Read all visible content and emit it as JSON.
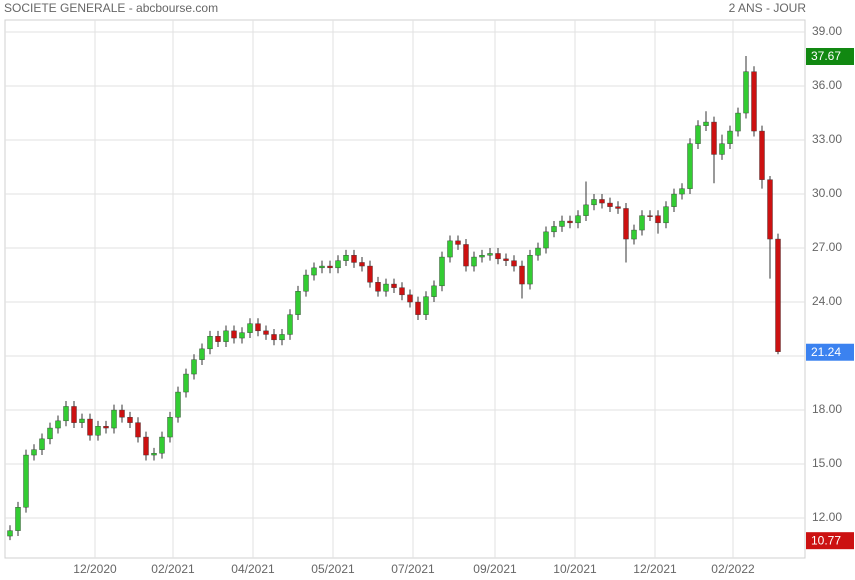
{
  "chart_data": {
    "type": "candlestick",
    "title": "SOCIETE GENERALE - abcbourse.com",
    "subtitle": "2 ANS - JOUR",
    "open": [
      11.0,
      11.3,
      12.6,
      15.5,
      15.8,
      16.4,
      17.0,
      17.4,
      18.2,
      17.3,
      17.5,
      16.6,
      17.1,
      17.0,
      18.0,
      17.6,
      17.3,
      16.5,
      15.5,
      15.6,
      16.5,
      17.6,
      19.0,
      20.0,
      20.8,
      21.4,
      22.1,
      21.8,
      22.4,
      22.0,
      22.3,
      22.8,
      22.4,
      22.2,
      21.9,
      22.2,
      23.3,
      24.6,
      25.5,
      25.9,
      26.0,
      25.9,
      26.3,
      26.6,
      26.2,
      26.0,
      25.1,
      24.6,
      25.0,
      24.8,
      24.4,
      24.0,
      23.3,
      24.3,
      24.9,
      26.5,
      27.4,
      27.2,
      26.0,
      26.5,
      26.6,
      26.7,
      26.4,
      26.3,
      26.0,
      25.0,
      26.6,
      27.0,
      27.9,
      28.2,
      28.5,
      28.4,
      28.8,
      29.4,
      29.7,
      29.5,
      29.3,
      29.2,
      27.5,
      28.0,
      28.8,
      28.8,
      28.4,
      29.3,
      30.0,
      30.3,
      32.8,
      33.8,
      34.0,
      32.2,
      32.8,
      33.5,
      34.5,
      36.8,
      33.5,
      30.8,
      27.5
    ],
    "high": [
      11.6,
      12.9,
      15.8,
      16.1,
      16.7,
      17.3,
      17.7,
      18.5,
      18.5,
      17.8,
      17.8,
      17.4,
      17.4,
      18.3,
      18.3,
      17.9,
      17.6,
      16.8,
      15.9,
      16.8,
      17.9,
      19.3,
      20.3,
      21.1,
      21.7,
      22.4,
      22.4,
      22.7,
      22.7,
      22.6,
      23.1,
      23.1,
      22.7,
      22.5,
      22.5,
      23.6,
      24.9,
      25.8,
      26.2,
      26.3,
      26.3,
      26.6,
      26.9,
      26.9,
      26.5,
      26.3,
      25.4,
      25.3,
      25.3,
      25.1,
      24.7,
      24.3,
      24.6,
      25.2,
      26.8,
      27.7,
      27.7,
      27.5,
      26.8,
      26.9,
      27.0,
      27.0,
      26.7,
      26.6,
      26.3,
      26.9,
      27.3,
      28.2,
      28.5,
      28.8,
      28.8,
      29.1,
      30.7,
      30.0,
      30.0,
      29.8,
      29.6,
      29.5,
      28.3,
      29.1,
      29.1,
      29.1,
      29.6,
      30.3,
      30.6,
      33.1,
      34.1,
      34.6,
      34.3,
      33.3,
      33.8,
      34.8,
      37.67,
      37.1,
      33.8,
      31.0,
      27.8
    ],
    "low": [
      10.77,
      11.0,
      12.3,
      15.2,
      15.5,
      16.1,
      16.7,
      17.1,
      17.0,
      17.0,
      16.3,
      16.3,
      16.7,
      16.7,
      17.3,
      17.0,
      16.2,
      15.2,
      15.2,
      15.3,
      16.2,
      17.3,
      18.7,
      19.7,
      20.5,
      21.1,
      21.5,
      21.5,
      21.7,
      21.7,
      22.0,
      22.1,
      21.9,
      21.6,
      21.6,
      21.9,
      23.0,
      24.3,
      25.2,
      25.6,
      25.6,
      25.6,
      26.0,
      25.9,
      25.7,
      24.8,
      24.3,
      24.3,
      24.5,
      24.1,
      23.7,
      23.0,
      23.0,
      24.0,
      24.6,
      26.2,
      26.9,
      25.7,
      25.7,
      26.2,
      26.3,
      26.1,
      26.0,
      25.7,
      24.2,
      24.7,
      26.3,
      26.7,
      27.6,
      27.9,
      28.1,
      28.1,
      28.5,
      29.1,
      29.2,
      29.0,
      28.9,
      26.2,
      27.2,
      27.7,
      28.5,
      27.8,
      28.1,
      29.0,
      29.7,
      30.0,
      32.5,
      33.5,
      30.6,
      31.9,
      32.5,
      33.2,
      34.2,
      33.2,
      30.3,
      25.3,
      21.1
    ],
    "close": [
      11.3,
      12.6,
      15.5,
      15.8,
      16.4,
      17.0,
      17.4,
      18.2,
      17.3,
      17.5,
      16.6,
      17.1,
      17.0,
      18.0,
      17.6,
      17.3,
      16.5,
      15.5,
      15.6,
      16.5,
      17.6,
      19.0,
      20.0,
      20.8,
      21.4,
      22.1,
      21.8,
      22.4,
      22.0,
      22.3,
      22.8,
      22.4,
      22.2,
      21.9,
      22.2,
      23.3,
      24.6,
      25.5,
      25.9,
      26.0,
      25.9,
      26.3,
      26.6,
      26.2,
      26.0,
      25.1,
      24.6,
      25.0,
      24.8,
      24.4,
      24.0,
      23.3,
      24.3,
      24.9,
      26.5,
      27.4,
      27.2,
      26.0,
      26.5,
      26.6,
      26.7,
      26.4,
      26.3,
      26.0,
      25.0,
      26.6,
      27.0,
      27.9,
      28.2,
      28.5,
      28.4,
      28.8,
      29.4,
      29.7,
      29.5,
      29.3,
      29.2,
      27.5,
      28.0,
      28.8,
      28.8,
      28.4,
      29.3,
      30.0,
      30.3,
      32.8,
      33.8,
      34.0,
      32.2,
      32.8,
      33.5,
      34.5,
      36.8,
      33.5,
      30.8,
      27.5,
      21.24
    ],
    "up_color": "#33cc33",
    "down_color": "#cc1111",
    "xlim": [
      -0.625,
      99.375
    ],
    "xticks": [
      {
        "value": 10.625,
        "label": "12/2020"
      },
      {
        "value": 20.375,
        "label": "02/2021"
      },
      {
        "value": 30.375,
        "label": "04/2021"
      },
      {
        "value": 40.375,
        "label": "05/2021"
      },
      {
        "value": 50.375,
        "label": "07/2021"
      },
      {
        "value": 60.625,
        "label": "09/2021"
      },
      {
        "value": 70.625,
        "label": "10/2021"
      },
      {
        "value": 80.625,
        "label": "12/2021"
      },
      {
        "value": 90.375,
        "label": "02/2022"
      }
    ],
    "ylim": [
      9.78,
      39.67
    ],
    "yticks": [
      {
        "value": 12,
        "label": "12.00"
      },
      {
        "value": 15,
        "label": "15.00"
      },
      {
        "value": 18,
        "label": "18.00"
      },
      {
        "value": 21,
        "label": "21.00"
      },
      {
        "value": 24,
        "label": "24.00"
      },
      {
        "value": 27,
        "label": "27.00"
      },
      {
        "value": 30,
        "label": "30.00"
      },
      {
        "value": 33,
        "label": "33.00"
      },
      {
        "value": 36,
        "label": "36.00"
      },
      {
        "value": 39,
        "label": "39.00"
      }
    ],
    "grid": true,
    "high_tag": 37.67,
    "high_tag_color": "#118811",
    "low_tag": 10.77,
    "low_tag_color": "#cc1111",
    "last_tag": 21.24,
    "last_tag_color": "#3b82f0"
  }
}
